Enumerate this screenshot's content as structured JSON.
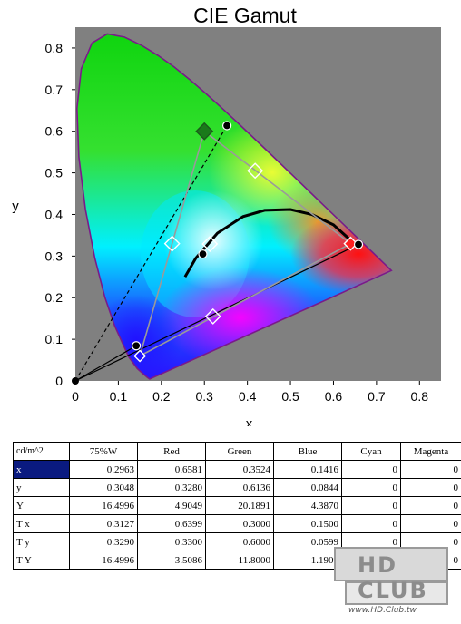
{
  "chart_data": {
    "type": "scatter",
    "title": "CIE Gamut",
    "xlabel": "x",
    "ylabel": "y",
    "xlim": [
      0,
      0.85
    ],
    "ylim": [
      0,
      0.85
    ],
    "x_ticks": [
      "0",
      "0.1",
      "0.2",
      "0.3",
      "0.4",
      "0.5",
      "0.6",
      "0.7",
      "0.8"
    ],
    "y_ticks": [
      "0",
      "0.1",
      "0.2",
      "0.3",
      "0.4",
      "0.5",
      "0.6",
      "0.7",
      "0.8"
    ],
    "measured_gamut": [
      [
        0.6581,
        0.328
      ],
      [
        0.3524,
        0.6136
      ],
      [
        0.1416,
        0.0844
      ]
    ],
    "reference_gamut": [
      [
        0.6399,
        0.33
      ],
      [
        0.3,
        0.6
      ],
      [
        0.15,
        0.0599
      ]
    ],
    "measured_white": [
      0.2963,
      0.3048
    ],
    "reference_white": [
      0.3127,
      0.329
    ],
    "secondary_points": [
      [
        0.225,
        0.33
      ],
      [
        0.418,
        0.505
      ],
      [
        0.32,
        0.155
      ]
    ]
  },
  "table": {
    "headers": [
      "cd/m^2",
      "75%W",
      "Red",
      "Green",
      "Blue",
      "Cyan",
      "Magenta"
    ],
    "rows": [
      {
        "label": "x",
        "values": [
          "0.2963",
          "0.6581",
          "0.3524",
          "0.1416",
          "0",
          "0"
        ]
      },
      {
        "label": "y",
        "values": [
          "0.3048",
          "0.3280",
          "0.6136",
          "0.0844",
          "0",
          "0"
        ]
      },
      {
        "label": "Y",
        "values": [
          "16.4996",
          "4.9049",
          "20.1891",
          "4.3870",
          "0",
          "0"
        ]
      },
      {
        "label": "T x",
        "values": [
          "0.3127",
          "0.6399",
          "0.3000",
          "0.1500",
          "0",
          "0"
        ]
      },
      {
        "label": "T y",
        "values": [
          "0.3290",
          "0.3300",
          "0.6000",
          "0.0599",
          "0",
          "0"
        ]
      },
      {
        "label": "T Y",
        "values": [
          "16.4996",
          "3.5086",
          "11.8000",
          "1.1909",
          "0",
          "0"
        ]
      }
    ]
  },
  "watermark": {
    "main": "HD CLUB",
    "url": "www.HD.Club.tw"
  }
}
